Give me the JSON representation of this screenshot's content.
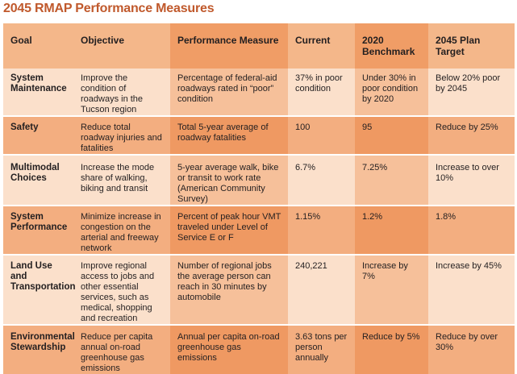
{
  "title": "2045 RMAP Performance Measures",
  "headers": {
    "goal": "Goal",
    "objective": "Objective",
    "measure": "Performance Measure",
    "current": "Current",
    "benchmark": "2020 Benchmark",
    "target": "2045 Plan Target"
  },
  "rows": [
    {
      "goal": "System Maintenance",
      "objective": "Improve the condition of roadways in the Tucson region",
      "measure": "Percentage of federal-aid roadways rated in “poor” condition",
      "current": "37% in poor condition",
      "benchmark": "Under 30% in poor condition by 2020",
      "target": "Below 20% poor by 2045"
    },
    {
      "goal": "Safety",
      "objective": "Reduce total roadway injuries and fatalities",
      "measure": "Total 5-year average of roadway fatalities",
      "current": "100",
      "benchmark": "95",
      "target": "Reduce by 25%"
    },
    {
      "goal": "Multimodal Choices",
      "objective": "Increase the mode share of walking, biking and transit",
      "measure": "5-year average walk, bike or transit to work rate (American Community Survey)",
      "current": "6.7%",
      "benchmark": "7.25%",
      "target": "Increase to over 10%"
    },
    {
      "goal": "System Performance",
      "objective": "Minimize increase in congestion on the arterial and freeway network",
      "measure": "Percent of peak hour VMT traveled under Level of Service E or F",
      "current": "1.15%",
      "benchmark": "1.2%",
      "target": "1.8%"
    },
    {
      "goal": "Land Use and Transportation",
      "objective": "Improve regional access to jobs and other essential services, such as medical, shopping and recreation",
      "measure": "Number of regional jobs the average person can reach in 30 minutes by automobile",
      "current": "240,221",
      "benchmark": "Increase by 7%",
      "target": "Increase by 45%"
    },
    {
      "goal": "Environmental Stewardship",
      "objective": "Reduce per capita annual on-road greenhouse gas emissions",
      "measure": "Annual per capita on-road greenhouse gas emissions",
      "current": "3.63 tons per person annually",
      "benchmark": "Reduce by 5%",
      "target": "Reduce by over 30%"
    }
  ]
}
